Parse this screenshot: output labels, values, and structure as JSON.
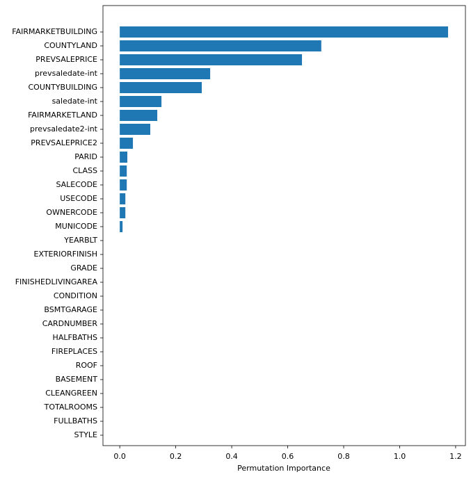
{
  "chart_data": {
    "type": "barh",
    "x_label": "Permutation Importance",
    "categories": [
      "FAIRMARKETBUILDING",
      "COUNTYLAND",
      "PREVSALEPRICE",
      "prevsaledate-int",
      "COUNTYBUILDING",
      "saledate-int",
      "FAIRMARKETLAND",
      "prevsaledate2-int",
      "PREVSALEPRICE2",
      "PARID",
      "CLASS",
      "SALECODE",
      "USECODE",
      "OWNERCODE",
      "MUNICODE",
      "YEARBLT",
      "EXTERIORFINISH",
      "GRADE",
      "FINISHEDLIVINGAREA",
      "CONDITION",
      "BSMTGARAGE",
      "CARDNUMBER",
      "HALFBATHS",
      "FIREPLACES",
      "ROOF",
      "BASEMENT",
      "CLEANGREEN",
      "TOTALROOMS",
      "FULLBATHS",
      "STYLE"
    ],
    "values": [
      1.173,
      0.72,
      0.651,
      0.323,
      0.293,
      0.149,
      0.134,
      0.109,
      0.047,
      0.027,
      0.025,
      0.025,
      0.02,
      0.02,
      0.01,
      0,
      0,
      0,
      0,
      0,
      0,
      0,
      0,
      0,
      0,
      0,
      0,
      0,
      0,
      0
    ],
    "color": "#1f77b4",
    "xlim": [
      -0.06,
      1.235
    ],
    "xticks": [
      {
        "value": 0,
        "label": "0.0"
      },
      0.2,
      0.4,
      0.6,
      0.8,
      {
        "value": 1,
        "label": "1.0"
      },
      1.2
    ]
  }
}
